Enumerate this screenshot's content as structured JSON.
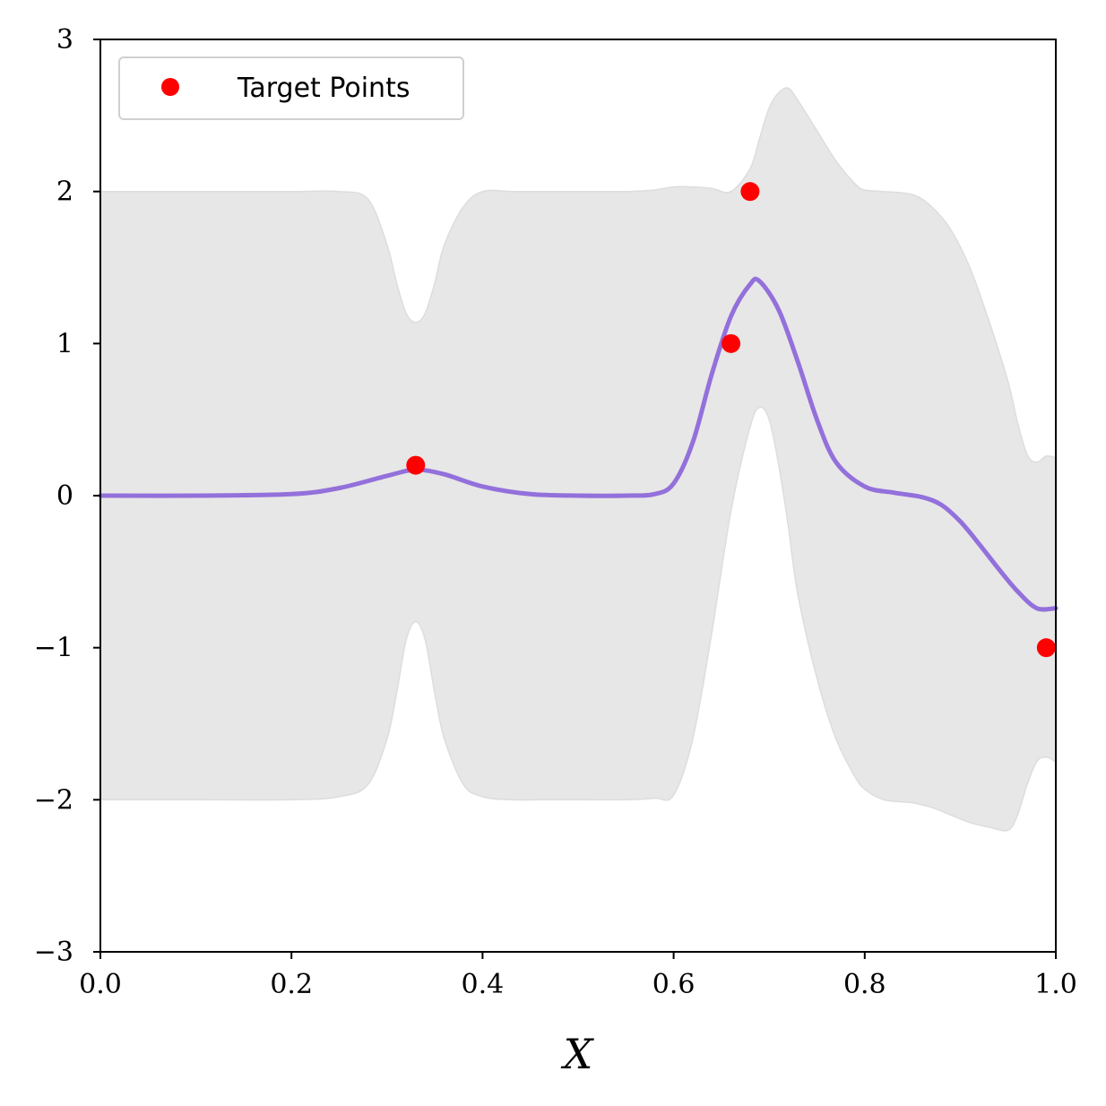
{
  "chart_data": {
    "type": "line",
    "title": "",
    "xlabel": "X",
    "ylabel": "",
    "xlim": [
      0.0,
      1.0
    ],
    "ylim": [
      -3,
      3
    ],
    "x_ticks": [
      "0.0",
      "0.2",
      "0.4",
      "0.6",
      "0.8",
      "1.0"
    ],
    "y_ticks": [
      "3",
      "2",
      "1",
      "0",
      "−1",
      "−2",
      "−3"
    ],
    "x_tick_values": [
      0.0,
      0.2,
      0.4,
      0.6,
      0.8,
      1.0
    ],
    "y_tick_values": [
      3,
      2,
      1,
      0,
      -1,
      -2,
      -3
    ],
    "grid": false,
    "legend": {
      "placement": "top-left",
      "entries": [
        {
          "label": "Target Points",
          "marker": "circle",
          "color": "#ff0000"
        }
      ]
    },
    "series": [
      {
        "name": "Target Points",
        "kind": "scatter",
        "color": "#ff0000",
        "points": [
          {
            "x": 0.33,
            "y": 0.2
          },
          {
            "x": 0.66,
            "y": 1.0
          },
          {
            "x": 0.68,
            "y": 2.0
          },
          {
            "x": 0.99,
            "y": -1.0
          }
        ]
      },
      {
        "kind": "line",
        "color": "#9370db",
        "x": [
          0.0,
          0.1,
          0.2,
          0.25,
          0.3,
          0.33,
          0.36,
          0.4,
          0.45,
          0.5,
          0.55,
          0.58,
          0.6,
          0.62,
          0.64,
          0.66,
          0.68,
          0.69,
          0.71,
          0.73,
          0.75,
          0.77,
          0.8,
          0.83,
          0.86,
          0.88,
          0.9,
          0.92,
          0.94,
          0.96,
          0.98,
          1.0
        ],
        "y": [
          0.0,
          0.0,
          0.01,
          0.05,
          0.13,
          0.17,
          0.14,
          0.06,
          0.01,
          0.0,
          0.0,
          0.01,
          0.08,
          0.35,
          0.8,
          1.18,
          1.39,
          1.41,
          1.22,
          0.88,
          0.5,
          0.22,
          0.06,
          0.02,
          -0.01,
          -0.06,
          -0.17,
          -0.32,
          -0.48,
          -0.63,
          -0.74,
          -0.74
        ]
      },
      {
        "kind": "band",
        "color": "#e7e7e7",
        "x": [
          0.0,
          0.1,
          0.2,
          0.25,
          0.28,
          0.3,
          0.31,
          0.32,
          0.33,
          0.34,
          0.35,
          0.36,
          0.38,
          0.4,
          0.43,
          0.46,
          0.5,
          0.55,
          0.58,
          0.6,
          0.62,
          0.64,
          0.66,
          0.68,
          0.69,
          0.7,
          0.71,
          0.72,
          0.73,
          0.75,
          0.77,
          0.79,
          0.8,
          0.82,
          0.85,
          0.87,
          0.89,
          0.91,
          0.93,
          0.95,
          0.96,
          0.97,
          0.98,
          0.99,
          1.0
        ],
        "upper": [
          2.0,
          2.0,
          2.0,
          2.0,
          1.95,
          1.65,
          1.4,
          1.2,
          1.14,
          1.2,
          1.4,
          1.65,
          1.9,
          2.0,
          2.0,
          2.0,
          2.0,
          2.0,
          2.01,
          2.03,
          2.03,
          2.02,
          2.0,
          2.15,
          2.35,
          2.55,
          2.65,
          2.68,
          2.6,
          2.4,
          2.2,
          2.05,
          2.01,
          2.0,
          1.98,
          1.9,
          1.75,
          1.5,
          1.15,
          0.75,
          0.48,
          0.27,
          0.22,
          0.26,
          0.25
        ],
        "lower": [
          -2.0,
          -2.0,
          -2.0,
          -1.98,
          -1.9,
          -1.6,
          -1.3,
          -0.95,
          -0.83,
          -0.95,
          -1.3,
          -1.6,
          -1.9,
          -1.98,
          -2.0,
          -2.0,
          -2.0,
          -2.0,
          -1.99,
          -1.97,
          -1.6,
          -0.9,
          -0.1,
          0.45,
          0.58,
          0.5,
          0.2,
          -0.2,
          -0.65,
          -1.2,
          -1.6,
          -1.85,
          -1.93,
          -2.0,
          -2.02,
          -2.05,
          -2.1,
          -2.15,
          -2.18,
          -2.2,
          -2.1,
          -1.9,
          -1.75,
          -1.72,
          -1.75
        ]
      }
    ]
  }
}
